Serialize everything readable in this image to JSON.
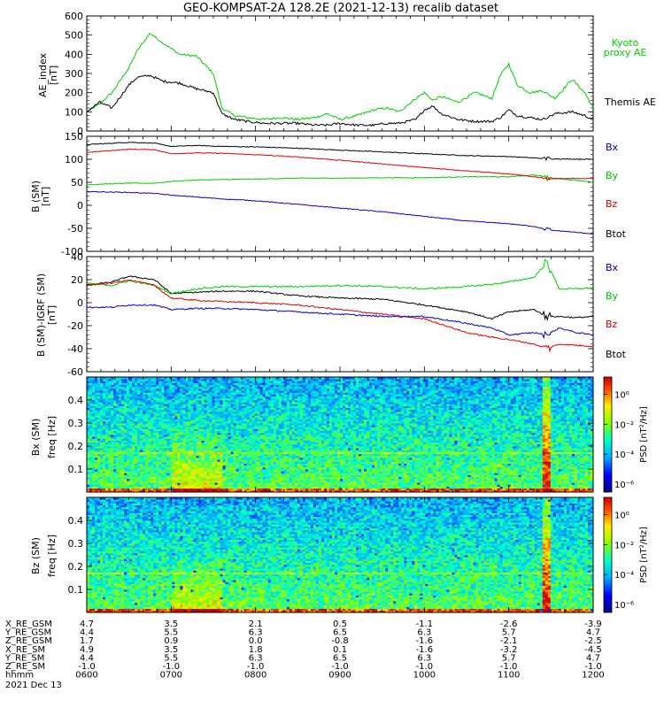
{
  "title": "GEO-KOMPSAT-2A 128.2E (2021-12-13) recalib dataset",
  "colors": {
    "black": "#000000",
    "green": "#00cc00",
    "red": "#dd0000",
    "blue": "#0000cc",
    "label_blue": "#0000aa",
    "label_red": "#cc0000",
    "label_green": "#00bb00"
  },
  "time_axis": {
    "ticks": [
      "0600",
      "0700",
      "0800",
      "0900",
      "1000",
      "1100",
      "1200"
    ]
  },
  "panels": [
    {
      "id": "ae",
      "ylabel": "AE_index",
      "unit": "[nT]",
      "yticks": [
        "0",
        "100",
        "200",
        "300",
        "400",
        "500",
        "600"
      ],
      "legend": [
        {
          "label": "Kyoto",
          "color": "#00cc00"
        },
        {
          "label": "proxy AE",
          "color": "#00cc00"
        },
        {
          "label": "Themis AE",
          "color": "#000000"
        }
      ]
    },
    {
      "id": "bsm",
      "ylabel": "B (SM)",
      "unit": "[nT]",
      "yticks": [
        "-100",
        "-50",
        "0",
        "50",
        "100",
        "150"
      ],
      "legend": [
        {
          "label": "Bx",
          "color": "#0000aa"
        },
        {
          "label": "By",
          "color": "#00bb00"
        },
        {
          "label": "Bz",
          "color": "#cc0000"
        },
        {
          "label": "Btot",
          "color": "#000000"
        }
      ]
    },
    {
      "id": "bigrf",
      "ylabel": "B (SM)-IGRF (SM)",
      "unit": "[nT]",
      "yticks": [
        "-60",
        "-40",
        "-20",
        "0",
        "20",
        "40"
      ],
      "legend": [
        {
          "label": "Bx",
          "color": "#0000aa"
        },
        {
          "label": "By",
          "color": "#00bb00"
        },
        {
          "label": "Bz",
          "color": "#cc0000"
        },
        {
          "label": "Btot",
          "color": "#000000"
        }
      ]
    },
    {
      "id": "bxspec",
      "ylabel_top": "Bx (SM)",
      "ylabel": "freq",
      "unit": "[Hz]",
      "yticks": [
        "0.1",
        "0.2",
        "0.3",
        "0.4"
      ],
      "cbar_label": "PSD [nT²/Hz]",
      "cbar_ticks": [
        "10⁰",
        "10⁻²",
        "10⁻⁴",
        "10⁻⁶"
      ]
    },
    {
      "id": "bzspec",
      "ylabel_top": "Bz (SM)",
      "ylabel": "freq",
      "unit": "[Hz]",
      "yticks": [
        "0.1",
        "0.2",
        "0.3",
        "0.4"
      ],
      "cbar_label": "PSD [nT²/Hz]",
      "cbar_ticks": [
        "10⁰",
        "10⁻²",
        "10⁻⁴",
        "10⁻⁶"
      ]
    }
  ],
  "ephemeris": {
    "rows": [
      {
        "label": "X_RE_GSM",
        "values": [
          "4.7",
          "3.5",
          "2.1",
          "0.5",
          "-1.1",
          "-2.6",
          "-3.9"
        ]
      },
      {
        "label": "Y_RE_GSM",
        "values": [
          "4.4",
          "5.5",
          "6.3",
          "6.5",
          "6.3",
          "5.7",
          "4.7"
        ]
      },
      {
        "label": "Z_RE_GSM",
        "values": [
          "1.7",
          "0.9",
          "0.0",
          "-0.8",
          "-1.6",
          "-2.1",
          "-2.5"
        ]
      },
      {
        "label": "X_RE_SM",
        "values": [
          "4.9",
          "3.5",
          "1.8",
          "0.1",
          "-1.6",
          "-3.2",
          "-4.5"
        ]
      },
      {
        "label": "Y_RE_SM",
        "values": [
          "4.4",
          "5.5",
          "6.3",
          "6.5",
          "6.3",
          "5.7",
          "4.7"
        ]
      },
      {
        "label": "Z_RE_SM",
        "values": [
          "-1.0",
          "-1.0",
          "-1.0",
          "-1.0",
          "-1.0",
          "-1.0",
          "-1.0"
        ]
      },
      {
        "label": "hhmm",
        "values": [
          "0600",
          "0700",
          "0800",
          "0900",
          "1000",
          "1100",
          "1200"
        ]
      }
    ],
    "date": "2021 Dec 13"
  },
  "chart_data": [
    {
      "type": "line",
      "title": "GEO-KOMPSAT-2A 128.2E (2021-12-13) recalib dataset",
      "ylabel": "AE_index [nT]",
      "x_unit": "UT hhmm",
      "xlim": [
        "0600",
        "1200"
      ],
      "ylim": [
        0,
        600
      ],
      "series": [
        {
          "name": "Kyoto proxy AE",
          "x": [
            6.0,
            6.15,
            6.3,
            6.5,
            6.6,
            6.75,
            6.9,
            7.1,
            7.3,
            7.5,
            7.6,
            7.75,
            7.9,
            8.1,
            8.3,
            8.5,
            8.7,
            8.85,
            9.0,
            9.2,
            9.4,
            9.55,
            9.7,
            9.9,
            10.0,
            10.1,
            10.2,
            10.4,
            10.6,
            10.8,
            10.9,
            11.0,
            11.1,
            11.25,
            11.4,
            11.55,
            11.75,
            11.9,
            12.0
          ],
          "values": [
            100,
            140,
            200,
            330,
            420,
            510,
            460,
            400,
            390,
            300,
            120,
            80,
            70,
            60,
            70,
            60,
            70,
            90,
            60,
            80,
            110,
            120,
            100,
            170,
            200,
            160,
            180,
            150,
            200,
            170,
            290,
            350,
            240,
            200,
            210,
            170,
            270,
            200,
            120
          ]
        },
        {
          "name": "Themis AE",
          "x": [
            6.0,
            6.15,
            6.3,
            6.5,
            6.6,
            6.75,
            6.9,
            7.1,
            7.3,
            7.5,
            7.6,
            7.75,
            7.9,
            8.1,
            8.3,
            8.5,
            8.7,
            8.85,
            9.0,
            9.2,
            9.4,
            9.55,
            9.7,
            9.9,
            10.0,
            10.1,
            10.2,
            10.4,
            10.6,
            10.8,
            10.9,
            11.0,
            11.1,
            11.25,
            11.4,
            11.55,
            11.75,
            11.9,
            12.0
          ],
          "values": [
            100,
            150,
            120,
            240,
            280,
            290,
            260,
            250,
            220,
            200,
            90,
            60,
            50,
            40,
            40,
            40,
            30,
            30,
            40,
            30,
            30,
            40,
            40,
            60,
            110,
            130,
            90,
            60,
            50,
            50,
            70,
            110,
            80,
            70,
            60,
            90,
            100,
            80,
            60
          ]
        }
      ]
    },
    {
      "type": "line",
      "ylabel": "B (SM) [nT]",
      "x_unit": "UT hhmm",
      "xlim": [
        "0600",
        "1200"
      ],
      "ylim": [
        -100,
        150
      ],
      "series": [
        {
          "name": "Btot",
          "x": [
            6.0,
            6.5,
            6.8,
            7.0,
            7.3,
            7.6,
            8.0,
            8.5,
            9.0,
            9.5,
            10.0,
            10.5,
            11.0,
            11.3,
            11.5,
            12.0
          ],
          "values": [
            132,
            137,
            135,
            128,
            130,
            128,
            127,
            124,
            120,
            116,
            112,
            108,
            106,
            103,
            101,
            100
          ]
        },
        {
          "name": "By",
          "x": [
            6.0,
            6.5,
            6.8,
            7.0,
            7.3,
            7.6,
            8.0,
            8.5,
            9.0,
            9.5,
            10.0,
            10.5,
            11.0,
            11.3,
            11.5,
            12.0
          ],
          "values": [
            45,
            48,
            48,
            52,
            55,
            56,
            57,
            59,
            59,
            60,
            60,
            62,
            62,
            66,
            60,
            50
          ]
        },
        {
          "name": "Bz",
          "x": [
            6.0,
            6.5,
            6.8,
            7.0,
            7.3,
            7.6,
            8.0,
            8.5,
            9.0,
            9.5,
            10.0,
            10.5,
            11.0,
            11.3,
            11.5,
            12.0
          ],
          "values": [
            115,
            122,
            121,
            112,
            114,
            113,
            110,
            105,
            98,
            90,
            82,
            75,
            68,
            62,
            58,
            58
          ]
        },
        {
          "name": "Bx",
          "x": [
            6.0,
            6.5,
            6.8,
            7.0,
            7.3,
            7.6,
            8.0,
            8.5,
            9.0,
            9.5,
            10.0,
            10.5,
            11.0,
            11.3,
            11.5,
            12.0
          ],
          "values": [
            30,
            28,
            26,
            22,
            18,
            14,
            10,
            2,
            -6,
            -14,
            -24,
            -34,
            -40,
            -46,
            -54,
            -62
          ]
        }
      ]
    },
    {
      "type": "line",
      "ylabel": "B (SM)-IGRF (SM) [nT]",
      "x_unit": "UT hhmm",
      "xlim": [
        "0600",
        "1200"
      ],
      "ylim": [
        -60,
        40
      ],
      "series": [
        {
          "name": "Btot",
          "x": [
            6.0,
            6.3,
            6.5,
            6.8,
            7.0,
            7.3,
            7.6,
            8.0,
            8.5,
            9.0,
            9.5,
            10.0,
            10.5,
            10.8,
            11.0,
            11.3,
            11.45,
            11.6,
            11.8,
            12.0
          ],
          "values": [
            15,
            18,
            23,
            20,
            8,
            9,
            10,
            10,
            6,
            4,
            3,
            -2,
            -8,
            -14,
            -8,
            -6,
            -12,
            -12,
            -13,
            -12
          ]
        },
        {
          "name": "By",
          "x": [
            6.0,
            6.3,
            6.5,
            6.8,
            7.0,
            7.3,
            7.6,
            8.0,
            8.5,
            9.0,
            9.5,
            10.0,
            10.5,
            10.8,
            11.0,
            11.3,
            11.45,
            11.6,
            11.8,
            12.0
          ],
          "values": [
            17,
            15,
            19,
            15,
            8,
            12,
            14,
            14,
            14,
            15,
            14,
            12,
            14,
            16,
            18,
            22,
            35,
            12,
            12,
            13
          ]
        },
        {
          "name": "Bz",
          "x": [
            6.0,
            6.3,
            6.5,
            6.8,
            7.0,
            7.3,
            7.6,
            8.0,
            8.5,
            9.0,
            9.5,
            10.0,
            10.5,
            10.8,
            11.0,
            11.3,
            11.45,
            11.6,
            11.8,
            12.0
          ],
          "values": [
            15,
            17,
            20,
            15,
            4,
            2,
            1,
            0,
            -2,
            -6,
            -10,
            -14,
            -26,
            -30,
            -32,
            -36,
            -40,
            -36,
            -37,
            -38
          ]
        },
        {
          "name": "Bx",
          "x": [
            6.0,
            6.3,
            6.5,
            6.8,
            7.0,
            7.3,
            7.6,
            8.0,
            8.5,
            9.0,
            9.5,
            10.0,
            10.5,
            10.8,
            11.0,
            11.3,
            11.45,
            11.6,
            11.8,
            12.0
          ],
          "values": [
            -4,
            -4,
            -2,
            -2,
            -6,
            -5,
            -5,
            -6,
            -8,
            -10,
            -12,
            -12,
            -18,
            -22,
            -28,
            -26,
            -28,
            -22,
            -26,
            -28
          ]
        }
      ]
    },
    {
      "type": "heatmap",
      "title": "Bx (SM)",
      "ylabel": "freq [Hz]",
      "ylim": [
        0,
        0.5
      ],
      "colorbar": "PSD [nT²/Hz]",
      "crange_log10": [
        -6,
        1
      ],
      "features": [
        {
          "desc": "enhanced power",
          "x_start": 7.0,
          "x_end": 7.6,
          "freq_max": 0.32
        },
        {
          "desc": "broadband burst",
          "x_start": 11.4,
          "x_end": 11.5,
          "freq_max": 0.5
        }
      ]
    },
    {
      "type": "heatmap",
      "title": "Bz (SM)",
      "ylabel": "freq [Hz]",
      "ylim": [
        0,
        0.5
      ],
      "colorbar": "PSD [nT²/Hz]",
      "crange_log10": [
        -6,
        1
      ],
      "features": [
        {
          "desc": "enhanced power",
          "x_start": 7.0,
          "x_end": 7.6,
          "freq_max": 0.25
        },
        {
          "desc": "broadband burst",
          "x_start": 11.4,
          "x_end": 11.5,
          "freq_max": 0.5
        }
      ]
    }
  ]
}
